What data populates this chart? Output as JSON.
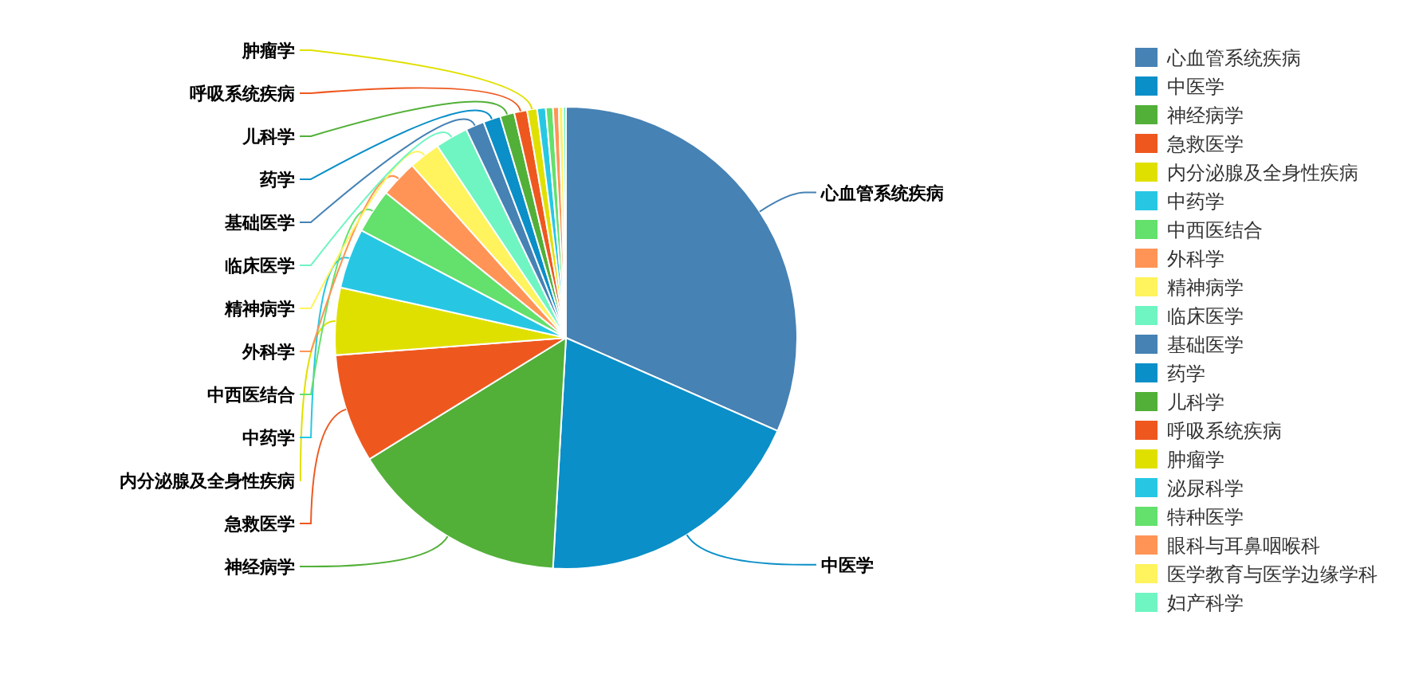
{
  "chart_data": {
    "type": "pie",
    "legend": "right",
    "categories": [
      "心血管系统疾病",
      "中医学",
      "神经病学",
      "急救医学",
      "内分泌腺及全身性疾病",
      "中药学",
      "中西医结合",
      "外科学",
      "精神病学",
      "临床医学",
      "基础医学",
      "药学",
      "儿科学",
      "呼吸系统疾病",
      "肿瘤学",
      "泌尿科学",
      "特种医学",
      "眼科与耳鼻咽喉科",
      "医学教育与医学边缘学科",
      "妇产科学"
    ],
    "values": [
      31.6,
      19.3,
      15.3,
      7.6,
      4.7,
      4.2,
      3.1,
      2.6,
      2.2,
      2.3,
      1.3,
      1.2,
      1.0,
      0.9,
      0.7,
      0.6,
      0.5,
      0.4,
      0.3,
      0.2
    ],
    "colors": [
      "#4682b4",
      "#0a8fc8",
      "#52b038",
      "#ee581f",
      "#e0e000",
      "#27c7e4",
      "#64e06c",
      "#ff9456",
      "#fff35e",
      "#6ff5c2",
      "#4682b4",
      "#0a8fc8",
      "#52b038",
      "#ee581f",
      "#e0e000",
      "#27c7e4",
      "#64e06c",
      "#ff9456",
      "#fff35e",
      "#6ff5c2"
    ]
  }
}
